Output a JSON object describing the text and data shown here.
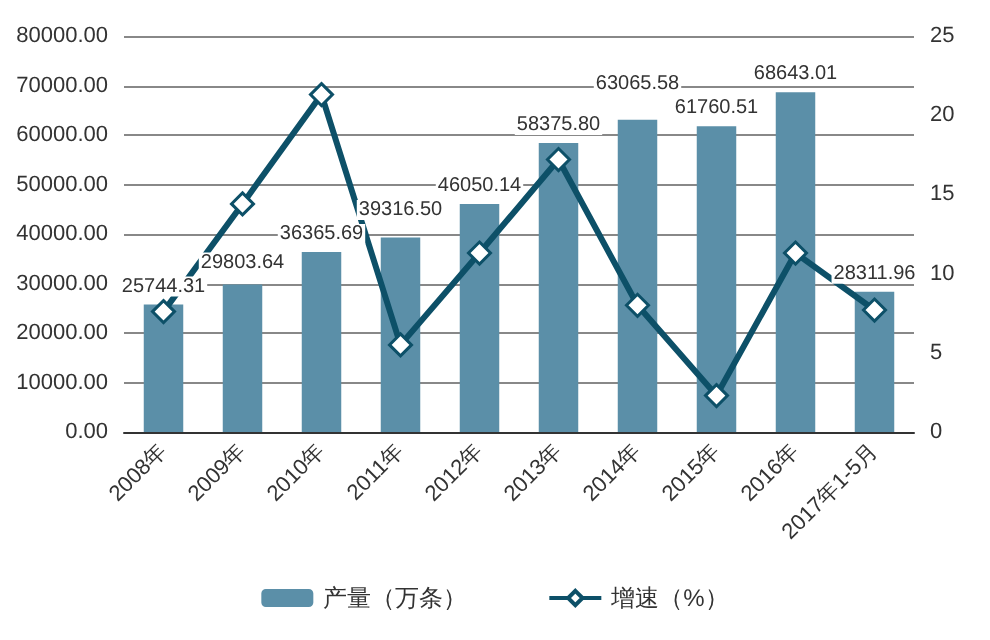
{
  "chart_data": {
    "type": "bar",
    "categories": [
      "2008年",
      "2009年",
      "2010年",
      "2011年",
      "2012年",
      "2013年",
      "2014年",
      "2015年",
      "2016年",
      "2017年1-5月"
    ],
    "series": [
      {
        "name": "产量（万条）",
        "color": "#5b8fa8",
        "values": [
          25744.31,
          29803.64,
          36365.69,
          39316.5,
          46050.14,
          58375.8,
          63065.58,
          61760.51,
          68643.01,
          28311.96
        ],
        "value_labels": [
          "25744.31",
          "29803.64",
          "36365.69",
          "39316.50",
          "46050.14",
          "58375.80",
          "63065.58",
          "61760.51",
          "68643.01",
          "28311.96"
        ]
      },
      {
        "name": "增速（%）",
        "type": "line",
        "axis": "y2",
        "color": "#0d5068",
        "marker": "diamond",
        "values": [
          7.6,
          14.4,
          21.3,
          5.5,
          11.3,
          17.2,
          8.0,
          2.3,
          11.3,
          7.7
        ]
      }
    ],
    "ylim": [
      0,
      80000
    ],
    "yticks": [
      {
        "value": 0,
        "label": "0.00"
      },
      {
        "value": 10000,
        "label": "10000.00"
      },
      {
        "value": 20000,
        "label": "20000.00"
      },
      {
        "value": 30000,
        "label": "30000.00"
      },
      {
        "value": 40000,
        "label": "40000.00"
      },
      {
        "value": 50000,
        "label": "50000.00"
      },
      {
        "value": 60000,
        "label": "60000.00"
      },
      {
        "value": 70000,
        "label": "70000.00"
      },
      {
        "value": 80000,
        "label": "80000.00"
      }
    ],
    "y2lim": [
      0,
      25
    ],
    "y2ticks": [
      0,
      5,
      10,
      15,
      20,
      25
    ],
    "grid": "y",
    "legend": "bottom"
  }
}
